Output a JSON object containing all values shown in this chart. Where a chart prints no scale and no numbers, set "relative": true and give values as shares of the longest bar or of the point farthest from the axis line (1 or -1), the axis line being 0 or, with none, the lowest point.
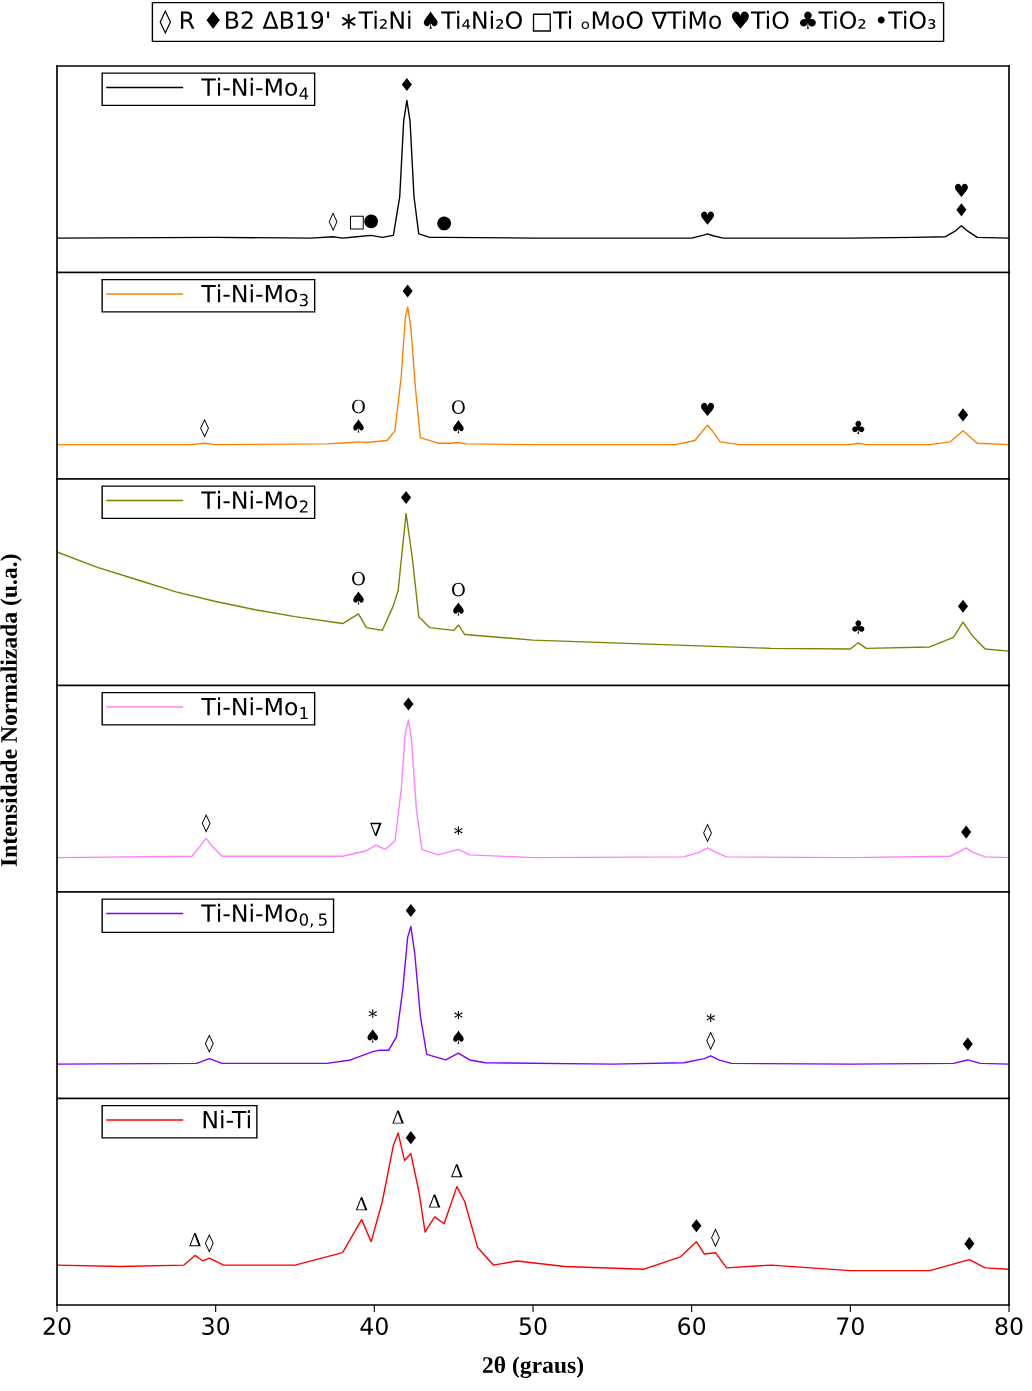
{
  "chart_data": [
    {
      "type": "line",
      "relative": true,
      "title": "◊ R ♦B2 ΔB19' ∗Ti₂Ni ♠Ti₄Ni₂O □Ti ₒMoO ∇TiMo ♥TiO ♣TiO₂ •TiO₃",
      "xlim": [
        20,
        80
      ],
      "xticks": [
        20,
        30,
        40,
        50,
        60,
        70,
        80
      ],
      "tick_labels": false,
      "legend": "top left",
      "grid": false,
      "series": [
        {
          "name": "Ti-Ni-Mo$_{4}$",
          "color": "#000000",
          "x": [
            20,
            30,
            36,
            37.4,
            38,
            38.9,
            39.8,
            40.5,
            41.2,
            41.6,
            41.85,
            42.05,
            42.25,
            42.5,
            42.8,
            43.5,
            44.4,
            50,
            60,
            60.7,
            61,
            61.4,
            62,
            70,
            74,
            76,
            76.6,
            77,
            77.4,
            78,
            80
          ],
          "values": [
            0.2,
            0.204,
            0.2,
            0.208,
            0.2,
            0.208,
            0.216,
            0.204,
            0.216,
            0.44,
            0.88,
            1.0,
            0.88,
            0.44,
            0.224,
            0.204,
            0.204,
            0.2,
            0.2,
            0.216,
            0.224,
            0.212,
            0.2,
            0.2,
            0.204,
            0.208,
            0.24,
            0.272,
            0.24,
            0.204,
            0.2
          ]
        }
      ],
      "annotations": [
        {
          "text": "◊",
          "x": 37.4,
          "y": 0.208
        },
        {
          "text": "□",
          "x": 38.9,
          "y": 0.208
        },
        {
          "text": "●",
          "x": 39.8,
          "y": 0.216
        },
        {
          "text": "♦",
          "x": 42.05,
          "y": 1.0
        },
        {
          "text": "●",
          "x": 44.4,
          "y": 0.204
        },
        {
          "text": "♥",
          "x": 61,
          "y": 0.224
        },
        {
          "text": "♦",
          "x": 77,
          "y": 0.272
        },
        {
          "text": "♥",
          "x": 77,
          "y": 0.272
        }
      ]
    },
    {
      "type": "line",
      "relative": true,
      "xlim": [
        20,
        80
      ],
      "xticks": [
        20,
        30,
        40,
        50,
        60,
        70,
        80
      ],
      "tick_labels": false,
      "legend": "top left",
      "grid": false,
      "series": [
        {
          "name": "Ti-Ni-Mo$_{3}$",
          "color": "#ff8000",
          "x": [
            20,
            28.5,
            29.3,
            30,
            37,
            38.5,
            39,
            39.5,
            40.8,
            41.3,
            41.7,
            41.95,
            42.1,
            42.3,
            42.6,
            42.9,
            44,
            44.8,
            45.3,
            45.8,
            50,
            59,
            60.2,
            60.7,
            61,
            61.3,
            61.8,
            63,
            70,
            70.5,
            71,
            75,
            76.3,
            76.8,
            77.1,
            77.5,
            78,
            80
          ],
          "values": [
            0.2,
            0.2,
            0.208,
            0.2,
            0.204,
            0.212,
            0.216,
            0.212,
            0.224,
            0.28,
            0.6,
            0.936,
            1.0,
            0.88,
            0.52,
            0.24,
            0.208,
            0.208,
            0.212,
            0.204,
            0.2,
            0.2,
            0.224,
            0.28,
            0.312,
            0.28,
            0.216,
            0.2,
            0.2,
            0.208,
            0.2,
            0.2,
            0.216,
            0.256,
            0.28,
            0.248,
            0.208,
            0.2
          ]
        }
      ],
      "annotations": [
        {
          "text": "◊",
          "x": 29.3,
          "y": 0.208
        },
        {
          "text": "♠",
          "x": 39,
          "y": 0.216
        },
        {
          "text": "O",
          "x": 39,
          "y": 0.216
        },
        {
          "text": "♦",
          "x": 42.1,
          "y": 1.0
        },
        {
          "text": "♠",
          "x": 45.3,
          "y": 0.212
        },
        {
          "text": "O",
          "x": 45.3,
          "y": 0.212
        },
        {
          "text": "♥",
          "x": 61,
          "y": 0.312
        },
        {
          "text": "♣",
          "x": 70.5,
          "y": 0.208
        },
        {
          "text": "♦",
          "x": 77.1,
          "y": 0.28
        }
      ]
    },
    {
      "type": "line",
      "relative": true,
      "xlim": [
        20,
        80
      ],
      "xticks": [
        20,
        30,
        40,
        50,
        60,
        70,
        80
      ],
      "tick_labels": false,
      "legend": "top left",
      "grid": false,
      "series": [
        {
          "name": "Ti-Ni-Mo$_{2}$",
          "color": "#808000",
          "x": [
            20,
            22.5,
            25,
            27.5,
            30,
            32.5,
            35,
            38,
            39,
            39.5,
            40.5,
            41.2,
            41.5,
            42,
            42.4,
            42.8,
            43.5,
            45,
            45.3,
            45.7,
            50,
            55,
            60,
            65,
            70,
            70.5,
            71,
            75,
            76.5,
            77.1,
            77.7,
            78.5,
            80
          ],
          "values": [
            0.776,
            0.688,
            0.616,
            0.544,
            0.488,
            0.44,
            0.4,
            0.36,
            0.416,
            0.336,
            0.32,
            0.464,
            0.552,
            1.0,
            0.736,
            0.4,
            0.336,
            0.32,
            0.352,
            0.296,
            0.264,
            0.248,
            0.232,
            0.216,
            0.212,
            0.248,
            0.216,
            0.224,
            0.28,
            0.368,
            0.288,
            0.212,
            0.2
          ]
        }
      ],
      "annotations": [
        {
          "text": "♠",
          "x": 39,
          "y": 0.416
        },
        {
          "text": "O",
          "x": 39,
          "y": 0.416
        },
        {
          "text": "♦",
          "x": 42,
          "y": 1.0
        },
        {
          "text": "♠",
          "x": 45.3,
          "y": 0.352
        },
        {
          "text": "O",
          "x": 45.3,
          "y": 0.352
        },
        {
          "text": "♣",
          "x": 70.5,
          "y": 0.248
        },
        {
          "text": "♦",
          "x": 77.1,
          "y": 0.368
        }
      ]
    },
    {
      "type": "line",
      "relative": true,
      "ylabel": "Intensidade Normalizada (u.a.)",
      "xlim": [
        20,
        80
      ],
      "xticks": [
        20,
        30,
        40,
        50,
        60,
        70,
        80
      ],
      "tick_labels": false,
      "legend": "top left",
      "grid": false,
      "series": [
        {
          "name": "Ti-Ni-Mo$_{1}$",
          "color": "#ff80ff",
          "x": [
            20,
            28.5,
            29,
            29.4,
            29.8,
            30.4,
            38,
            39.5,
            40.1,
            40.7,
            41.3,
            41.7,
            41.95,
            42.15,
            42.35,
            42.65,
            43,
            44,
            45.3,
            46,
            50,
            59.5,
            60.5,
            61,
            61.5,
            62.2,
            70,
            76.3,
            77,
            77.3,
            77.7,
            78.5,
            80
          ],
          "values": [
            0.2,
            0.208,
            0.264,
            0.312,
            0.264,
            0.208,
            0.208,
            0.24,
            0.272,
            0.248,
            0.296,
            0.6,
            0.92,
            1.0,
            0.88,
            0.48,
            0.248,
            0.216,
            0.248,
            0.216,
            0.2,
            0.204,
            0.232,
            0.256,
            0.232,
            0.204,
            0.2,
            0.208,
            0.24,
            0.256,
            0.232,
            0.204,
            0.2
          ]
        }
      ],
      "annotations": [
        {
          "text": "◊",
          "x": 29.4,
          "y": 0.312
        },
        {
          "text": "∇",
          "x": 40.1,
          "y": 0.272
        },
        {
          "text": "♦",
          "x": 42.15,
          "y": 1.0
        },
        {
          "text": "*",
          "x": 45.3,
          "y": 0.248
        },
        {
          "text": "◊",
          "x": 61,
          "y": 0.256
        },
        {
          "text": "♦",
          "x": 77.3,
          "y": 0.256
        }
      ]
    },
    {
      "type": "line",
      "relative": true,
      "xlim": [
        20,
        80
      ],
      "xticks": [
        20,
        30,
        40,
        50,
        60,
        70,
        80
      ],
      "tick_labels": false,
      "legend": "top left",
      "grid": false,
      "series": [
        {
          "name": "Ti-Ni-Mo$_{0,5}$",
          "color": "#8000ff",
          "x": [
            20,
            28.8,
            29.6,
            30.4,
            37,
            38.5,
            39.9,
            40.3,
            40.9,
            41.4,
            41.8,
            42.1,
            42.3,
            42.55,
            42.9,
            43.3,
            44.5,
            45.3,
            46,
            47,
            55,
            59.5,
            60.8,
            61.2,
            61.7,
            62.5,
            70,
            76.5,
            77.4,
            78.2,
            80
          ],
          "values": [
            0.2,
            0.204,
            0.232,
            0.204,
            0.204,
            0.224,
            0.272,
            0.28,
            0.28,
            0.36,
            0.64,
            0.936,
            1.0,
            0.84,
            0.48,
            0.256,
            0.224,
            0.264,
            0.224,
            0.208,
            0.2,
            0.208,
            0.232,
            0.248,
            0.224,
            0.204,
            0.2,
            0.204,
            0.224,
            0.204,
            0.2
          ]
        }
      ],
      "annotations": [
        {
          "text": "◊",
          "x": 29.6,
          "y": 0.232
        },
        {
          "text": "♠",
          "x": 39.9,
          "y": 0.272
        },
        {
          "text": "*",
          "x": 39.9,
          "y": 0.272
        },
        {
          "text": "♦",
          "x": 42.3,
          "y": 1.0
        },
        {
          "text": "♠",
          "x": 45.3,
          "y": 0.264
        },
        {
          "text": "*",
          "x": 45.3,
          "y": 0.264
        },
        {
          "text": "◊",
          "x": 61.2,
          "y": 0.248
        },
        {
          "text": "*",
          "x": 61.2,
          "y": 0.248
        },
        {
          "text": "♦",
          "x": 77.4,
          "y": 0.224
        }
      ]
    },
    {
      "type": "line",
      "relative": true,
      "xlabel": "2θ (graus)",
      "xlim": [
        20,
        80
      ],
      "xticks": [
        20,
        30,
        40,
        50,
        60,
        70,
        80
      ],
      "tick_labels": "x",
      "legend": "top left",
      "grid": false,
      "series": [
        {
          "name": "Ni-Ti",
          "color": "#ff0000",
          "x": [
            20,
            24,
            28,
            28.7,
            29.2,
            29.6,
            30.5,
            35,
            38,
            39.2,
            39.8,
            40.5,
            41.2,
            41.5,
            41.9,
            42.3,
            42.8,
            43.2,
            43.8,
            44.4,
            45.2,
            45.7,
            46.5,
            47.5,
            49,
            52,
            57,
            59.3,
            60.3,
            60.8,
            61.5,
            62.2,
            65,
            70,
            75,
            77.5,
            78.5,
            80
          ],
          "values": [
            0.232,
            0.224,
            0.232,
            0.288,
            0.256,
            0.272,
            0.232,
            0.232,
            0.304,
            0.496,
            0.368,
            0.6,
            0.928,
            1.0,
            0.84,
            0.88,
            0.664,
            0.424,
            0.512,
            0.472,
            0.688,
            0.6,
            0.336,
            0.232,
            0.256,
            0.224,
            0.208,
            0.28,
            0.368,
            0.296,
            0.304,
            0.216,
            0.232,
            0.2,
            0.2,
            0.264,
            0.216,
            0.208
          ]
        }
      ],
      "annotations": [
        {
          "text": "Δ",
          "x": 28.7,
          "y": 0.288
        },
        {
          "text": "◊",
          "x": 29.6,
          "y": 0.272
        },
        {
          "text": "Δ",
          "x": 39.2,
          "y": 0.496
        },
        {
          "text": "Δ",
          "x": 41.5,
          "y": 1.0
        },
        {
          "text": "♦",
          "x": 42.3,
          "y": 0.88
        },
        {
          "text": "Δ",
          "x": 43.8,
          "y": 0.512
        },
        {
          "text": "Δ",
          "x": 45.2,
          "y": 0.688
        },
        {
          "text": "♦",
          "x": 60.3,
          "y": 0.368
        },
        {
          "text": "◊",
          "x": 61.5,
          "y": 0.304
        },
        {
          "text": "♦",
          "x": 77.5,
          "y": 0.264
        }
      ]
    }
  ]
}
